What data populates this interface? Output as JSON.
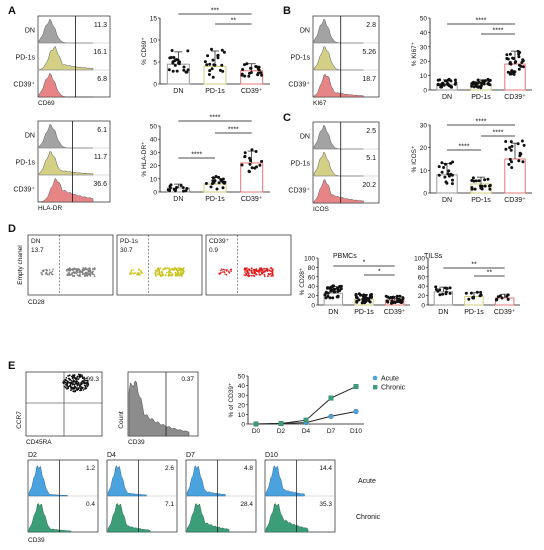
{
  "panels": {
    "A": {
      "letter": "A",
      "hist1": {
        "rows": [
          "DN",
          "PD-1s",
          "CD39⁺"
        ],
        "values": [
          "11.3",
          "16.1",
          "6.8"
        ],
        "axis_label": "CD69"
      },
      "hist2": {
        "rows": [
          "DN",
          "PD-1s",
          "CD39⁺"
        ],
        "values": [
          "6.1",
          "11.7",
          "36.6"
        ],
        "axis_label": "HLA-DR"
      },
      "chart1": {
        "ylabel": "% CD69⁺",
        "yticks": [
          "0",
          "5",
          "10",
          "15"
        ],
        "categories": [
          "DN",
          "PD-1s",
          "CD39⁺"
        ],
        "sig": [
          "***",
          "**"
        ]
      },
      "chart2": {
        "ylabel": "% HLA-DR⁺",
        "yticks": [
          "0",
          "10",
          "20",
          "30",
          "40",
          "50"
        ],
        "categories": [
          "DN",
          "PD-1s",
          "CD39⁺"
        ],
        "sig": [
          "****",
          "****",
          "****"
        ]
      }
    },
    "B": {
      "letter": "B",
      "hist": {
        "rows": [
          "DN",
          "PD-1s",
          "CD39⁺"
        ],
        "values": [
          "2.8",
          "5.26",
          "18.7"
        ],
        "axis_label": "KI67"
      },
      "chart": {
        "ylabel": "% KI67⁺",
        "yticks": [
          "0",
          "10",
          "20",
          "30",
          "40",
          "50"
        ],
        "categories": [
          "DN",
          "PD-1s",
          "CD39⁺"
        ],
        "sig": [
          "****",
          "****"
        ]
      }
    },
    "C": {
      "letter": "C",
      "hist": {
        "rows": [
          "DN",
          "PD-1s",
          "CD39⁺"
        ],
        "values": [
          "2.5",
          "5.1",
          "20.2"
        ],
        "axis_label": "ICOS"
      },
      "chart": {
        "ylabel": "% ICOS⁺",
        "yticks": [
          "0",
          "10",
          "20",
          "30"
        ],
        "categories": [
          "DN",
          "PD-1s",
          "CD39⁺"
        ],
        "sig": [
          "****",
          "****",
          "****"
        ]
      }
    },
    "D": {
      "letter": "D",
      "flow": [
        {
          "title": "DN",
          "value": "13.7",
          "color": "#7f7f7f"
        },
        {
          "title": "PD-1s",
          "value": "30.7",
          "color": "#c8c21a"
        },
        {
          "title": "CD39⁺",
          "value": "0.9",
          "color": "#e02020"
        }
      ],
      "flow_ylabel": "Empty chanel",
      "flow_xlabel": "CD28",
      "pbmc": {
        "title": "PBMCs",
        "ylabel": "% CD28⁺",
        "yticks": [
          "0",
          "20",
          "40",
          "60",
          "80",
          "100"
        ],
        "categories": [
          "DN",
          "PD-1s",
          "CD39⁺"
        ],
        "sig": [
          "*",
          "*"
        ]
      },
      "tils": {
        "title": "TILSs",
        "yticks": [
          "0",
          "20",
          "40",
          "60",
          "80",
          "100"
        ],
        "categories": [
          "DN",
          "PD-1s",
          "CD39⁺"
        ],
        "sig": [
          "**",
          "**"
        ]
      }
    },
    "E": {
      "letter": "E",
      "scatter": {
        "value": "99.3",
        "ylabel": "CCR7",
        "xlabel": "CD45RA"
      },
      "count_hist": {
        "value": "0.37",
        "ylabel": "Count",
        "xlabel": "CD39"
      },
      "timeline": {
        "ylabel": "% of CD39⁺",
        "yticks": [
          "0",
          "10",
          "20",
          "30",
          "40",
          "50"
        ],
        "xticks": [
          "D0",
          "D2",
          "D4",
          "D7",
          "D10"
        ],
        "legend": [
          "Acute",
          "Chronic"
        ]
      },
      "days": [
        "D2",
        "D4",
        "D7",
        "D10"
      ],
      "acute_values": [
        "1.2",
        "2.6",
        "4.8",
        "14.4"
      ],
      "chronic_values": [
        "0.4",
        "7.1",
        "28.4",
        "35.3"
      ],
      "row_labels": [
        "Acute",
        "Chronic"
      ],
      "axis_label": "CD39"
    }
  },
  "colors": {
    "dn": "#9a9a9a",
    "pd1": "#cfcc7a",
    "cd39": "#e5787a",
    "acute": "#4aa3df",
    "chronic": "#3c9e78",
    "acute_line": "#4a7fb0",
    "chronic_line": "#3c8e70"
  },
  "chart_data": [
    {
      "type": "scatter",
      "title": "",
      "ylabel": "% CD69⁺",
      "categories": [
        "DN",
        "PD-1s",
        "CD39⁺"
      ],
      "series": [
        {
          "values": [
            4.5,
            4.0,
            3.0
          ]
        }
      ],
      "ylim": [
        0,
        15
      ]
    },
    {
      "type": "scatter",
      "title": "",
      "ylabel": "% HLA-DR⁺",
      "categories": [
        "DN",
        "PD-1s",
        "CD39⁺"
      ],
      "series": [
        {
          "values": [
            3,
            6,
            22
          ]
        }
      ],
      "ylim": [
        0,
        50
      ]
    },
    {
      "type": "scatter",
      "title": "",
      "ylabel": "% KI67⁺",
      "categories": [
        "DN",
        "PD-1s",
        "CD39⁺"
      ],
      "series": [
        {
          "values": [
            4,
            4,
            18
          ]
        }
      ],
      "ylim": [
        0,
        50
      ]
    },
    {
      "type": "scatter",
      "title": "",
      "ylabel": "% ICOS⁺",
      "categories": [
        "DN",
        "PD-1s",
        "CD39⁺"
      ],
      "series": [
        {
          "values": [
            8,
            4,
            15
          ]
        }
      ],
      "ylim": [
        0,
        30
      ]
    },
    {
      "type": "scatter",
      "title": "PBMCs",
      "ylabel": "% CD28⁺",
      "categories": [
        "DN",
        "PD-1s",
        "CD39⁺"
      ],
      "series": [
        {
          "values": [
            25,
            12,
            10
          ]
        }
      ],
      "ylim": [
        0,
        100
      ]
    },
    {
      "type": "scatter",
      "title": "TILSs",
      "ylabel": "",
      "categories": [
        "DN",
        "PD-1s",
        "CD39⁺"
      ],
      "series": [
        {
          "values": [
            28,
            18,
            15
          ]
        }
      ],
      "ylim": [
        0,
        100
      ]
    },
    {
      "type": "line",
      "title": "",
      "ylabel": "% of CD39⁺",
      "x": [
        "D0",
        "D2",
        "D4",
        "D7",
        "D10"
      ],
      "series": [
        {
          "name": "Acute",
          "values": [
            0,
            0.5,
            1.5,
            8,
            13
          ]
        },
        {
          "name": "Chronic",
          "values": [
            0,
            0.5,
            4,
            27,
            39
          ]
        }
      ],
      "ylim": [
        0,
        50
      ],
      "legend": "top-right"
    }
  ]
}
